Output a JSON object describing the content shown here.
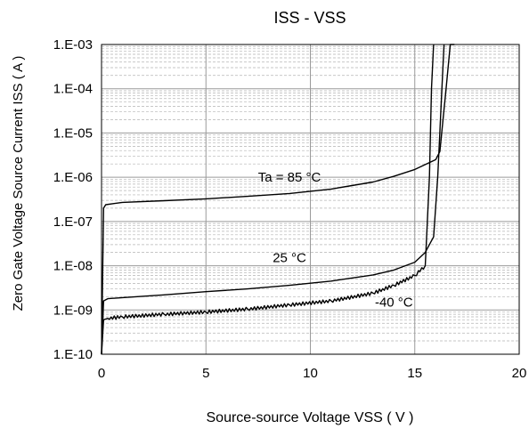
{
  "chart_data": {
    "type": "line",
    "title": "ISS - VSS",
    "xlabel": "Source-source Voltage VSS ( V )",
    "ylabel": "Zero Gate Voltage Source Current  ISS   ( A )",
    "xlim": [
      0,
      20
    ],
    "ylim": [
      1e-10,
      0.001
    ],
    "yscale": "log",
    "grid": true,
    "x_ticks": [
      0,
      5,
      10,
      15,
      20
    ],
    "x_tick_labels": [
      "0",
      "5",
      "10",
      "15",
      "20"
    ],
    "y_ticks": [
      1e-10,
      1e-09,
      1e-08,
      1e-07,
      1e-06,
      1e-05,
      0.0001,
      0.001
    ],
    "y_tick_labels": [
      "1.E-10",
      "1.E-09",
      "1.E-08",
      "1.E-07",
      "1.E-06",
      "1.E-05",
      "1.E-04",
      "1.E-03"
    ],
    "series": [
      {
        "name": "Ta = 85 °C",
        "label_text": "Ta = 85 °C",
        "x": [
          0.0,
          0.1,
          0.2,
          1,
          3,
          5,
          7,
          9,
          11,
          13,
          14,
          15,
          16,
          16.2,
          16.5,
          16.7,
          16.9
        ],
        "y": [
          1e-10,
          2e-07,
          2.4e-07,
          2.7e-07,
          2.95e-07,
          3.25e-07,
          3.7e-07,
          4.3e-07,
          5.4e-07,
          7.8e-07,
          1.05e-06,
          1.5e-06,
          2.5e-06,
          3.8e-06,
          0.0001,
          0.001,
          0.001
        ]
      },
      {
        "name": "25 °C",
        "label_text": "25 °C",
        "x": [
          0.0,
          0.1,
          0.3,
          1,
          3,
          5,
          7,
          9,
          11,
          13,
          14,
          15,
          15.5,
          15.9,
          16.1,
          16.3,
          16.4
        ],
        "y": [
          1e-10,
          1.6e-09,
          1.8e-09,
          1.9e-09,
          2.2e-09,
          2.6e-09,
          3e-09,
          3.6e-09,
          4.5e-09,
          6.2e-09,
          8e-09,
          1.2e-08,
          2e-08,
          4.5e-08,
          1e-06,
          0.0001,
          0.001
        ]
      },
      {
        "name": "-40 °C",
        "label_text": "-40 °C",
        "noisy": true,
        "x": [
          0.0,
          0.1,
          0.3,
          1,
          3,
          5,
          7,
          9,
          11,
          13,
          14,
          15,
          15.5,
          15.7,
          15.8,
          15.9
        ],
        "y": [
          1e-10,
          6e-10,
          6.5e-10,
          7e-10,
          8e-10,
          9e-10,
          1.05e-09,
          1.3e-09,
          1.6e-09,
          2.4e-09,
          3.6e-09,
          6e-09,
          1e-08,
          1e-06,
          0.0001,
          0.001
        ]
      }
    ],
    "annotations": [
      {
        "text": "Ta = 85 °C",
        "series": "Ta = 85 °C",
        "x": 9.0,
        "y": 8e-07
      },
      {
        "text": "25 °C",
        "series": "25 °C",
        "x": 9.0,
        "y": 1.2e-08
      },
      {
        "text": "-40 °C",
        "series": "-40 °C",
        "x": 14.0,
        "y": 1.2e-09
      }
    ]
  }
}
